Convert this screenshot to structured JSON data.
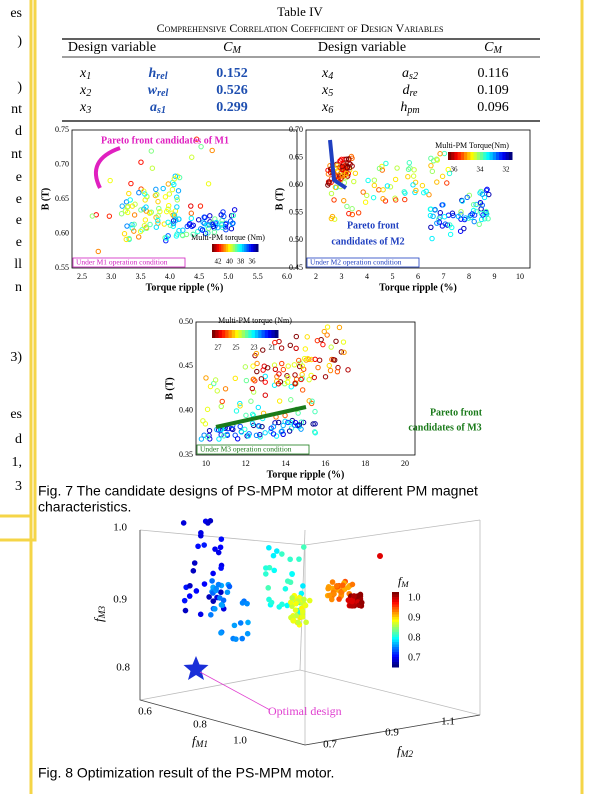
{
  "side_fragments": [
    "es",
    ")",
    ")",
    "nt",
    "d",
    "nt",
    "e",
    "e",
    "e",
    "e",
    "ll",
    "n",
    "3)",
    "es",
    "d",
    "1,",
    "3"
  ],
  "table": {
    "title": "Table IV",
    "subtitle": "Comprehensive Correlation Coefficient of Design Variables",
    "headers": [
      {
        "text": "Design variable"
      },
      {
        "symbol": "C",
        "sub": "M"
      },
      {
        "text": "Design variable"
      },
      {
        "symbol": "C",
        "sub": "M"
      }
    ],
    "rows": [
      [
        {
          "symbol": "x",
          "sub": "1"
        },
        {
          "symbol": "h",
          "sub": "rel"
        },
        "0.152",
        {
          "symbol": "x",
          "sub": "4"
        },
        {
          "symbol": "a",
          "sub": "s2"
        },
        "0.116"
      ],
      [
        {
          "symbol": "x",
          "sub": "2"
        },
        {
          "symbol": "w",
          "sub": "rel"
        },
        "0.526",
        {
          "symbol": "x",
          "sub": "5"
        },
        {
          "symbol": "d",
          "sub": "re"
        },
        "0.109"
      ],
      [
        {
          "symbol": "x",
          "sub": "3"
        },
        {
          "symbol": "a",
          "sub": "s1"
        },
        "0.299",
        {
          "symbol": "x",
          "sub": "6"
        },
        {
          "symbol": "h",
          "sub": "pm"
        },
        "0.096"
      ]
    ]
  },
  "fig7": {
    "panels": [
      {
        "ylabel": "B (T)",
        "xlabel": "Torque ripple (%)",
        "yticks": [
          "0.75",
          "0.70",
          "0.65",
          "0.60",
          "0.55"
        ],
        "xticks": [
          "2.5",
          "3.0",
          "3.5",
          "4.0",
          "4.5",
          "5.0",
          "5.5",
          "6.0"
        ],
        "pareto": [
          "Pareto front candidates of M1"
        ],
        "colorbar_title": "Multi-PM torque (Nm)",
        "colorbar_ticks": [
          "42",
          "40",
          "38",
          "36"
        ],
        "condition": "Under M1 operation condition"
      },
      {
        "ylabel": "B (T)",
        "xlabel": "Torque ripple (%)",
        "yticks": [
          "0.70",
          "0.65",
          "0.60",
          "0.55",
          "0.50",
          "0.45"
        ],
        "xticks": [
          "2",
          "3",
          "4",
          "5",
          "6",
          "7",
          "8",
          "9",
          "10"
        ],
        "pareto": [
          "Pareto front",
          "candidates of M2"
        ],
        "colorbar_title": "Multi-PM Torque(Nm)",
        "colorbar_ticks": [
          "36",
          "34",
          "32"
        ],
        "condition": "Under M2 operation condition"
      },
      {
        "ylabel": "B (T)",
        "xlabel": "Torque ripple (%)",
        "yticks": [
          "0.50",
          "0.45",
          "0.40",
          "0.35"
        ],
        "xticks": [
          "10",
          "12",
          "14",
          "16",
          "18",
          "20"
        ],
        "pareto": [
          "Pareto front",
          "candidates of M3"
        ],
        "colorbar_title": "Multi-PM torque (Nm)",
        "colorbar_ticks": [
          "27",
          "25",
          "23",
          "21"
        ],
        "condition": "Under M3 operation condition"
      }
    ],
    "caption_lines": [
      "Fig. 7  The candidate designs of PS-MPM motor at different PM magnet",
      "characteristics."
    ]
  },
  "fig8": {
    "zticks": [
      "1.0",
      "0.9",
      "0.8"
    ],
    "zlabel": {
      "symbol": "f",
      "sub": "M3"
    },
    "xticks": [
      "0.6",
      "0.8",
      "1.0"
    ],
    "xlabel": {
      "symbol": "f",
      "sub": "M1"
    },
    "yticks": [
      "0.7",
      "0.9",
      "1.1"
    ],
    "ylabel": {
      "symbol": "f",
      "sub": "M2"
    },
    "colorbar_title": {
      "symbol": "f",
      "sub": "M"
    },
    "colorbar_ticks": [
      "1.0",
      "0.9",
      "0.8",
      "0.7"
    ],
    "annotation": "Optimal design",
    "caption": "Fig. 8  Optimization result of the PS-MPM motor."
  }
}
